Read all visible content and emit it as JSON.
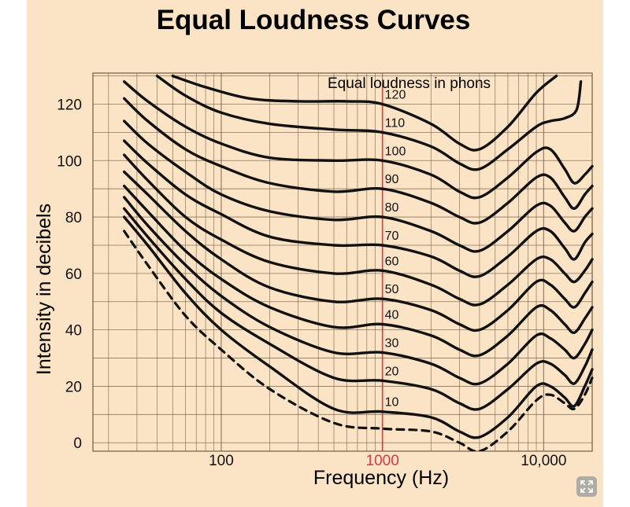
{
  "colors": {
    "background": "#fbe3c6",
    "grid": "#6e5c45",
    "curve": "#111111",
    "marker_1000hz": "#d53a45",
    "text": "#111111"
  },
  "icons": {
    "expand": "expand-icon"
  },
  "chart_data": {
    "type": "line",
    "title": "Equal Loudness Curves",
    "xlabel": "Frequency (Hz)",
    "ylabel": "Intensity in decibels",
    "x_scale": "log",
    "xlim": [
      16,
      20000
    ],
    "ylim": [
      -3,
      131
    ],
    "grid": true,
    "x_ticks": [
      {
        "value": 100,
        "label": "100"
      },
      {
        "value": 1000,
        "label": "1000",
        "highlight": true
      },
      {
        "value": 10000,
        "label": "10,000"
      }
    ],
    "y_ticks": [
      {
        "value": 0,
        "label": "0"
      },
      {
        "value": 20,
        "label": "20"
      },
      {
        "value": 40,
        "label": "40"
      },
      {
        "value": 60,
        "label": "60"
      },
      {
        "value": 80,
        "label": "80"
      },
      {
        "value": 100,
        "label": "100"
      },
      {
        "value": 120,
        "label": "120"
      }
    ],
    "annotation": "Equal loudness in phons",
    "series": [
      {
        "name": "120",
        "dashed": false,
        "points": [
          [
            50,
            130
          ],
          [
            80,
            126
          ],
          [
            150,
            122
          ],
          [
            300,
            121
          ],
          [
            600,
            121
          ],
          [
            1000,
            120
          ],
          [
            2000,
            113
          ],
          [
            3000,
            106
          ],
          [
            4000,
            104
          ],
          [
            6000,
            112
          ],
          [
            9000,
            124
          ],
          [
            12000,
            130
          ]
        ]
      },
      {
        "name": "110",
        "dashed": false,
        "points": [
          [
            40,
            130
          ],
          [
            60,
            123
          ],
          [
            100,
            117
          ],
          [
            200,
            113
          ],
          [
            500,
            111
          ],
          [
            1000,
            110
          ],
          [
            2000,
            105
          ],
          [
            3000,
            99
          ],
          [
            4000,
            97
          ],
          [
            6000,
            104
          ],
          [
            9000,
            112
          ],
          [
            11000,
            114
          ],
          [
            13500,
            115
          ],
          [
            16000,
            118
          ],
          [
            17000,
            128
          ]
        ]
      },
      {
        "name": "100",
        "dashed": false,
        "points": [
          [
            25,
            128
          ],
          [
            35,
            121
          ],
          [
            60,
            112
          ],
          [
            100,
            106
          ],
          [
            200,
            101
          ],
          [
            500,
            100
          ],
          [
            1000,
            100
          ],
          [
            2000,
            95
          ],
          [
            3000,
            89
          ],
          [
            4000,
            87
          ],
          [
            6000,
            94
          ],
          [
            9000,
            103
          ],
          [
            11000,
            104
          ],
          [
            13500,
            97
          ],
          [
            15500,
            92
          ],
          [
            18000,
            95
          ],
          [
            20000,
            98
          ]
        ]
      },
      {
        "name": "90",
        "dashed": false,
        "points": [
          [
            25,
            122
          ],
          [
            35,
            114
          ],
          [
            60,
            104
          ],
          [
            100,
            98
          ],
          [
            200,
            92
          ],
          [
            500,
            89
          ],
          [
            1000,
            90
          ],
          [
            2000,
            85
          ],
          [
            3000,
            80
          ],
          [
            4000,
            78
          ],
          [
            6000,
            85
          ],
          [
            9000,
            94
          ],
          [
            11000,
            94
          ],
          [
            13500,
            87
          ],
          [
            15500,
            83
          ],
          [
            18000,
            88
          ],
          [
            20000,
            91
          ]
        ]
      },
      {
        "name": "80",
        "dashed": false,
        "points": [
          [
            25,
            114
          ],
          [
            35,
            106
          ],
          [
            60,
            96
          ],
          [
            100,
            88
          ],
          [
            200,
            82
          ],
          [
            500,
            79
          ],
          [
            1000,
            80
          ],
          [
            2000,
            75
          ],
          [
            3000,
            70
          ],
          [
            4000,
            68
          ],
          [
            6000,
            75
          ],
          [
            9000,
            84
          ],
          [
            11000,
            84
          ],
          [
            13500,
            78
          ],
          [
            15500,
            75
          ],
          [
            18000,
            80
          ],
          [
            20000,
            83
          ]
        ]
      },
      {
        "name": "70",
        "dashed": false,
        "points": [
          [
            25,
            107
          ],
          [
            35,
            99
          ],
          [
            60,
            88
          ],
          [
            100,
            81
          ],
          [
            200,
            73
          ],
          [
            500,
            70
          ],
          [
            1000,
            70
          ],
          [
            2000,
            66
          ],
          [
            3000,
            61
          ],
          [
            4000,
            59
          ],
          [
            6000,
            66
          ],
          [
            9000,
            75
          ],
          [
            11000,
            75
          ],
          [
            13500,
            69
          ],
          [
            15500,
            65
          ],
          [
            18000,
            71
          ],
          [
            20000,
            74
          ]
        ]
      },
      {
        "name": "60",
        "dashed": false,
        "points": [
          [
            25,
            102
          ],
          [
            35,
            93
          ],
          [
            60,
            80
          ],
          [
            100,
            72
          ],
          [
            200,
            64
          ],
          [
            500,
            60
          ],
          [
            1000,
            61
          ],
          [
            2000,
            56
          ],
          [
            3000,
            51
          ],
          [
            4000,
            49
          ],
          [
            6000,
            56
          ],
          [
            9000,
            65
          ],
          [
            11000,
            65
          ],
          [
            13500,
            60
          ],
          [
            15500,
            57
          ],
          [
            18000,
            61
          ],
          [
            20000,
            65
          ]
        ]
      },
      {
        "name": "50",
        "dashed": false,
        "points": [
          [
            25,
            96
          ],
          [
            35,
            88
          ],
          [
            60,
            75
          ],
          [
            100,
            65
          ],
          [
            200,
            55
          ],
          [
            500,
            50
          ],
          [
            1000,
            51
          ],
          [
            2000,
            47
          ],
          [
            3000,
            42
          ],
          [
            4000,
            40
          ],
          [
            6000,
            47
          ],
          [
            9000,
            57
          ],
          [
            11000,
            56
          ],
          [
            13500,
            51
          ],
          [
            15500,
            48
          ],
          [
            18000,
            53
          ],
          [
            20000,
            57
          ]
        ]
      },
      {
        "name": "40",
        "dashed": false,
        "points": [
          [
            25,
            91
          ],
          [
            35,
            82
          ],
          [
            60,
            68
          ],
          [
            100,
            58
          ],
          [
            200,
            48
          ],
          [
            500,
            41
          ],
          [
            1000,
            42
          ],
          [
            2000,
            38
          ],
          [
            3000,
            33
          ],
          [
            4000,
            31
          ],
          [
            6000,
            38
          ],
          [
            9000,
            48
          ],
          [
            11000,
            47
          ],
          [
            13500,
            42
          ],
          [
            15500,
            39
          ],
          [
            18000,
            44
          ],
          [
            20000,
            48
          ]
        ]
      },
      {
        "name": "30",
        "dashed": false,
        "points": [
          [
            25,
            87
          ],
          [
            35,
            77
          ],
          [
            60,
            63
          ],
          [
            100,
            52
          ],
          [
            200,
            41
          ],
          [
            500,
            32
          ],
          [
            1000,
            32
          ],
          [
            2000,
            28
          ],
          [
            3000,
            23
          ],
          [
            4000,
            21
          ],
          [
            6000,
            28
          ],
          [
            9000,
            38
          ],
          [
            11000,
            37
          ],
          [
            13500,
            33
          ],
          [
            15500,
            30
          ],
          [
            18000,
            35
          ],
          [
            20000,
            40
          ]
        ]
      },
      {
        "name": "20",
        "dashed": false,
        "points": [
          [
            25,
            83
          ],
          [
            35,
            73
          ],
          [
            60,
            58
          ],
          [
            100,
            46
          ],
          [
            200,
            35
          ],
          [
            500,
            23
          ],
          [
            1000,
            22
          ],
          [
            2000,
            19
          ],
          [
            3000,
            14
          ],
          [
            4000,
            12
          ],
          [
            6000,
            19
          ],
          [
            9000,
            28
          ],
          [
            11000,
            28
          ],
          [
            13500,
            24
          ],
          [
            15500,
            21
          ],
          [
            18000,
            27
          ],
          [
            20000,
            33
          ]
        ]
      },
      {
        "name": "10",
        "dashed": false,
        "points": [
          [
            25,
            80
          ],
          [
            35,
            70
          ],
          [
            60,
            53
          ],
          [
            100,
            40
          ],
          [
            200,
            27
          ],
          [
            500,
            12
          ],
          [
            1000,
            11
          ],
          [
            2000,
            9
          ],
          [
            3000,
            4
          ],
          [
            4000,
            2
          ],
          [
            6000,
            9
          ],
          [
            9000,
            20
          ],
          [
            11000,
            20
          ],
          [
            13500,
            16
          ],
          [
            15500,
            13
          ],
          [
            18000,
            20
          ],
          [
            20000,
            26
          ]
        ]
      },
      {
        "name": "",
        "dashed": true,
        "points": [
          [
            25,
            75
          ],
          [
            35,
            63
          ],
          [
            60,
            45
          ],
          [
            100,
            33
          ],
          [
            200,
            19
          ],
          [
            500,
            7
          ],
          [
            1000,
            5
          ],
          [
            2000,
            4
          ],
          [
            3000,
            0
          ],
          [
            4000,
            -3
          ],
          [
            6000,
            4
          ],
          [
            9000,
            15
          ],
          [
            11000,
            17
          ],
          [
            13500,
            14
          ],
          [
            15500,
            12
          ],
          [
            18000,
            17
          ],
          [
            20000,
            23
          ]
        ]
      }
    ]
  }
}
